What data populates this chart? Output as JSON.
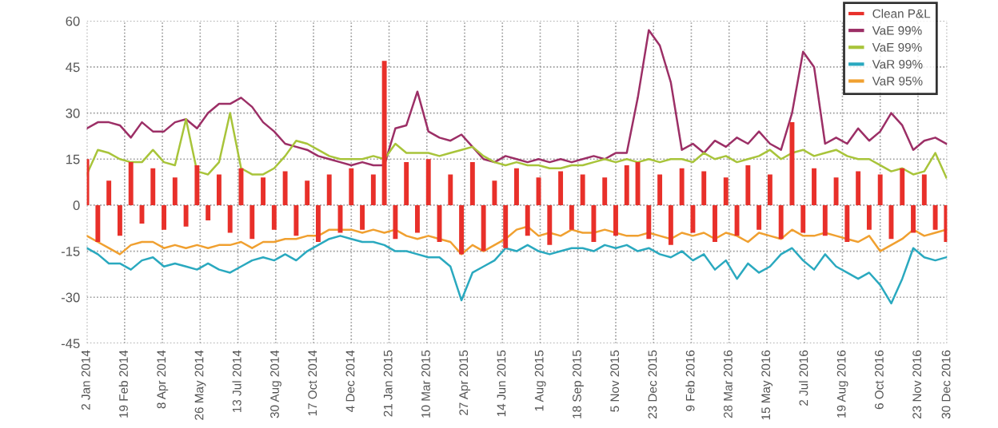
{
  "chart_data": {
    "type": "line",
    "x": [
      "2014-01-02",
      "2014-01-16",
      "2014-01-30",
      "2014-02-13",
      "2014-02-27",
      "2014-03-13",
      "2014-03-27",
      "2014-04-10",
      "2014-04-24",
      "2014-05-08",
      "2014-05-22",
      "2014-06-05",
      "2014-06-19",
      "2014-07-03",
      "2014-07-17",
      "2014-07-31",
      "2014-08-14",
      "2014-08-28",
      "2014-09-11",
      "2014-09-25",
      "2014-10-09",
      "2014-10-23",
      "2014-11-06",
      "2014-11-20",
      "2014-12-04",
      "2014-12-18",
      "2015-01-01",
      "2015-01-15",
      "2015-01-29",
      "2015-02-12",
      "2015-02-26",
      "2015-03-12",
      "2015-03-26",
      "2015-04-09",
      "2015-04-23",
      "2015-05-07",
      "2015-05-21",
      "2015-06-04",
      "2015-06-18",
      "2015-07-02",
      "2015-07-16",
      "2015-07-30",
      "2015-08-13",
      "2015-08-27",
      "2015-09-10",
      "2015-09-24",
      "2015-10-08",
      "2015-10-22",
      "2015-11-05",
      "2015-11-19",
      "2015-12-03",
      "2015-12-17",
      "2015-12-31",
      "2016-01-14",
      "2016-01-28",
      "2016-02-11",
      "2016-02-25",
      "2016-03-10",
      "2016-03-24",
      "2016-04-07",
      "2016-04-21",
      "2016-05-05",
      "2016-05-19",
      "2016-06-02",
      "2016-06-16",
      "2016-06-30",
      "2016-07-14",
      "2016-07-28",
      "2016-08-11",
      "2016-08-25",
      "2016-09-08",
      "2016-09-22",
      "2016-10-06",
      "2016-10-20",
      "2016-11-03",
      "2016-11-17",
      "2016-12-01",
      "2016-12-15",
      "2016-12-29"
    ],
    "series": [
      {
        "name": "Clean P&L",
        "type": "bar",
        "color": "#e8302a",
        "values": [
          15,
          -12,
          8,
          -10,
          14,
          -6,
          12,
          -8,
          9,
          -7,
          13,
          -5,
          10,
          -9,
          12,
          -11,
          9,
          -8,
          11,
          -10,
          8,
          -12,
          10,
          -9,
          12,
          -8,
          10,
          47,
          -11,
          14,
          -9,
          15,
          -12,
          10,
          -16,
          14,
          -15,
          8,
          -14,
          12,
          -10,
          9,
          -13,
          11,
          -8,
          10,
          -12,
          9,
          -10,
          13,
          14,
          -11,
          10,
          -13,
          12,
          -9,
          11,
          -12,
          9,
          -10,
          13,
          -8,
          10,
          -11,
          27,
          -9,
          12,
          -10,
          9,
          -12,
          11,
          -8,
          10,
          -11,
          12,
          -9,
          10,
          -8,
          -12
        ]
      },
      {
        "name": "VaE 99%",
        "color": "#9c2f66",
        "values": [
          25,
          27,
          27,
          26,
          22,
          27,
          24,
          24,
          27,
          28,
          25,
          30,
          33,
          33,
          35,
          32,
          27,
          24,
          20,
          19,
          18,
          16,
          15,
          14,
          13,
          14,
          13,
          13,
          25,
          26,
          37,
          24,
          22,
          21,
          23,
          19,
          15,
          14,
          16,
          15,
          14,
          15,
          14,
          15,
          14,
          15,
          16,
          15,
          17,
          17,
          35,
          57,
          52,
          40,
          18,
          20,
          17,
          21,
          19,
          22,
          20,
          24,
          20,
          18,
          30,
          50,
          45,
          20,
          22,
          20,
          25,
          21,
          24,
          30,
          26,
          18,
          21,
          22,
          20
        ]
      },
      {
        "name": "VaE 99%",
        "color": "#a8c43a",
        "values": [
          10,
          18,
          17,
          15,
          14,
          14,
          18,
          14,
          13,
          28,
          11,
          10,
          14,
          30,
          12,
          10,
          10,
          12,
          16,
          21,
          20,
          18,
          16,
          15,
          15,
          15,
          16,
          15,
          20,
          17,
          17,
          17,
          16,
          17,
          18,
          19,
          16,
          14,
          13,
          14,
          13,
          13,
          12,
          12,
          13,
          13,
          14,
          15,
          14,
          15,
          14,
          15,
          14,
          15,
          15,
          14,
          17,
          15,
          16,
          14,
          15,
          16,
          18,
          15,
          17,
          18,
          16,
          17,
          18,
          16,
          15,
          15,
          13,
          11,
          12,
          10,
          11,
          17,
          9
        ]
      },
      {
        "name": "VaR 99%",
        "color": "#2aa9bf",
        "values": [
          -14,
          -16,
          -19,
          -19,
          -21,
          -18,
          -17,
          -20,
          -19,
          -20,
          -21,
          -19,
          -21,
          -22,
          -20,
          -18,
          -17,
          -18,
          -16,
          -18,
          -15,
          -13,
          -11,
          -10,
          -11,
          -12,
          -12,
          -13,
          -15,
          -15,
          -16,
          -17,
          -17,
          -20,
          -31,
          -22,
          -20,
          -18,
          -14,
          -15,
          -13,
          -15,
          -16,
          -15,
          -14,
          -14,
          -15,
          -13,
          -14,
          -13,
          -15,
          -14,
          -16,
          -17,
          -15,
          -18,
          -16,
          -21,
          -18,
          -24,
          -19,
          -22,
          -20,
          -16,
          -14,
          -18,
          -21,
          -16,
          -20,
          -22,
          -24,
          -22,
          -26,
          -32,
          -24,
          -14,
          -17,
          -18,
          -17
        ]
      },
      {
        "name": "VaR 95%",
        "color": "#f0a030",
        "values": [
          -10,
          -12,
          -14,
          -16,
          -13,
          -12,
          -12,
          -14,
          -13,
          -14,
          -13,
          -14,
          -13,
          -13,
          -12,
          -14,
          -12,
          -12,
          -11,
          -11,
          -10,
          -10,
          -8,
          -8,
          -8,
          -9,
          -8,
          -9,
          -8,
          -10,
          -11,
          -10,
          -11,
          -12,
          -16,
          -13,
          -15,
          -13,
          -11,
          -8,
          -7,
          -10,
          -9,
          -10,
          -8,
          -9,
          -9,
          -8,
          -9,
          -10,
          -10,
          -9,
          -10,
          -11,
          -9,
          -10,
          -9,
          -11,
          -9,
          -10,
          -12,
          -9,
          -10,
          -11,
          -8,
          -10,
          -10,
          -9,
          -10,
          -11,
          -12,
          -10,
          -15,
          -13,
          -11,
          -8,
          -10,
          -9,
          -8
        ]
      }
    ],
    "xlim": [
      "2014-01-02",
      "2016-12-30"
    ],
    "xticks": [
      {
        "value": "2014-01-02",
        "label": "2 Jan 2014"
      },
      {
        "value": "2014-02-19",
        "label": "19 Feb 2014"
      },
      {
        "value": "2014-04-08",
        "label": "8 Apr 2014"
      },
      {
        "value": "2014-05-26",
        "label": "26 May 2014"
      },
      {
        "value": "2014-07-13",
        "label": "13 Jul 2014"
      },
      {
        "value": "2014-08-30",
        "label": "30 Aug 2014"
      },
      {
        "value": "2014-10-17",
        "label": "17 Oct 2014"
      },
      {
        "value": "2014-12-04",
        "label": "4 Dec 2014"
      },
      {
        "value": "2015-01-21",
        "label": "21 Jan 2015"
      },
      {
        "value": "2015-03-10",
        "label": "10 Mar 2015"
      },
      {
        "value": "2015-04-27",
        "label": "27 Apr 2015"
      },
      {
        "value": "2015-06-14",
        "label": "14 Jun 2015"
      },
      {
        "value": "2015-08-01",
        "label": "1 Aug 2015"
      },
      {
        "value": "2015-09-18",
        "label": "18 Sep 2015"
      },
      {
        "value": "2015-11-05",
        "label": "5 Nov 2015"
      },
      {
        "value": "2015-12-23",
        "label": "23 Dec 2015"
      },
      {
        "value": "2016-02-09",
        "label": "9 Feb 2016"
      },
      {
        "value": "2016-03-28",
        "label": "28 Mar 2016"
      },
      {
        "value": "2016-05-15",
        "label": "15 May 2016"
      },
      {
        "value": "2016-07-02",
        "label": "2 Jul 2016"
      },
      {
        "value": "2016-08-19",
        "label": "19 Aug 2016"
      },
      {
        "value": "2016-10-06",
        "label": "6 Oct 2016"
      },
      {
        "value": "2016-11-23",
        "label": "23 Nov 2016"
      },
      {
        "value": "2016-12-30",
        "label": "30 Dec 2016"
      }
    ],
    "ylim": [
      -45,
      60
    ],
    "yticks": [
      -45,
      -30,
      -15,
      0,
      15,
      30,
      45,
      60
    ],
    "grid": true,
    "legend": "top right"
  }
}
